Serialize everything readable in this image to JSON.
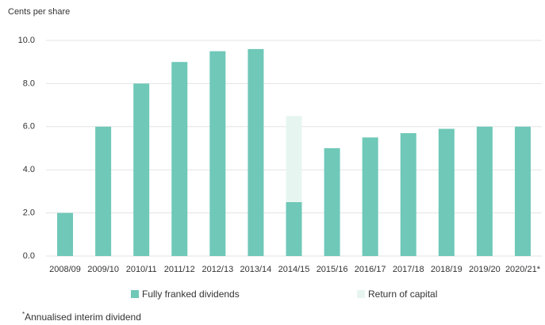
{
  "chart_data": {
    "type": "stacked_bar",
    "y_axis_label": "Cents per share",
    "categories": [
      "2008/09",
      "2009/10",
      "2010/11",
      "2011/12",
      "2012/13",
      "2013/14",
      "2014/15",
      "2015/16",
      "2016/17",
      "2017/18",
      "2018/19",
      "2019/20",
      "2020/21*"
    ],
    "series": [
      {
        "name": "Fully franked dividends",
        "color": "#6fc8b8",
        "values": [
          2,
          6,
          8,
          9,
          9.5,
          9.6,
          2.5,
          5,
          5.5,
          5.7,
          5.9,
          6,
          6
        ]
      },
      {
        "name": "Return of capital",
        "color": "#e7f5f1",
        "values": [
          0,
          0,
          0,
          0,
          0,
          0,
          4,
          0,
          0,
          0,
          0,
          0,
          0
        ]
      }
    ],
    "ylim": [
      0,
      10
    ],
    "yticks": [
      {
        "value": 0,
        "label": "0.0"
      },
      {
        "value": 2,
        "label": "2.0"
      },
      {
        "value": 4,
        "label": "4.0"
      },
      {
        "value": 6,
        "label": "6.0"
      },
      {
        "value": 8,
        "label": "8.0"
      },
      {
        "value": 10,
        "label": "10.0"
      }
    ],
    "grid": true,
    "footnote": {
      "marker": "*",
      "text": "Annualised interim dividend"
    }
  }
}
